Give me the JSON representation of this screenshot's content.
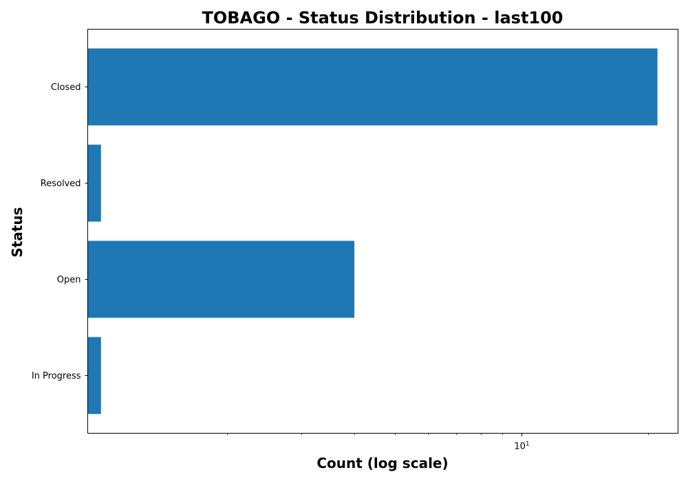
{
  "chart_data": {
    "type": "bar",
    "orientation": "horizontal",
    "title": "TOBAGO - Status Distribution - last100",
    "xlabel": "Count (log scale)",
    "ylabel": "Status",
    "x_scale": "log",
    "xlim": [
      0.93,
      23.5
    ],
    "categories": [
      "Closed",
      "Resolved",
      "Open",
      "In Progress"
    ],
    "values": [
      21,
      1,
      4,
      1
    ],
    "x_ticks": [
      {
        "value": 10,
        "base": "10",
        "exponent": "1"
      }
    ],
    "x_minor_ticks": [
      2,
      3,
      4,
      5,
      6,
      7,
      8,
      9,
      20
    ],
    "grid": false,
    "legend": "none",
    "colors": {
      "bar": "#1f77b4",
      "axis": "#000000",
      "background": "#ffffff"
    }
  }
}
